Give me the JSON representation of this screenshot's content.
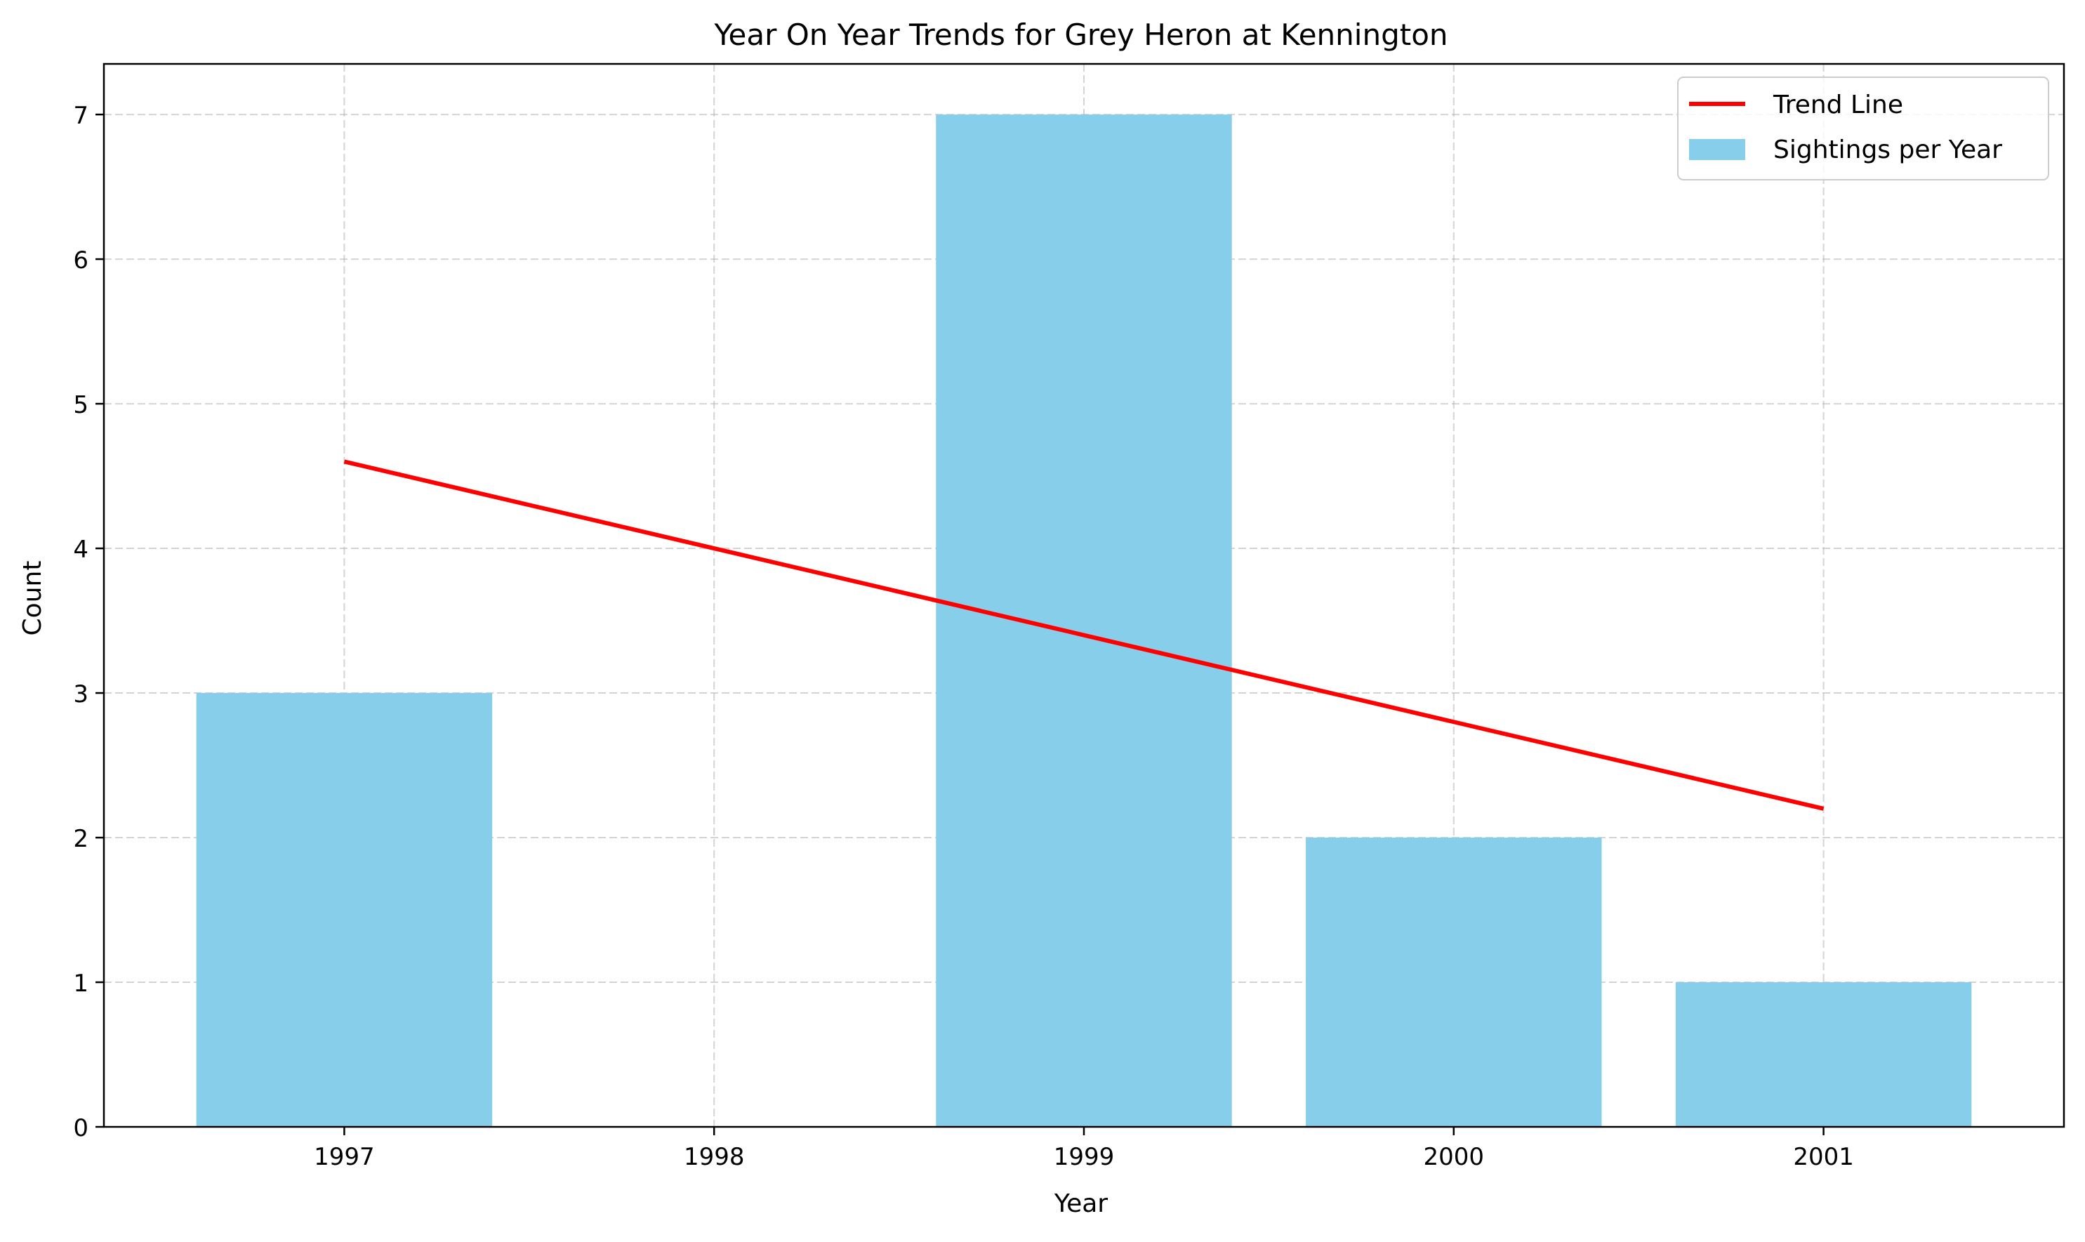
{
  "chart_data": {
    "type": "bar",
    "title": "Year On Year Trends for Grey Heron at Kennington",
    "xlabel": "Year",
    "ylabel": "Count",
    "categories": [
      "1997",
      "1998",
      "1999",
      "2000",
      "2001"
    ],
    "series": [
      {
        "name": "Sightings per Year",
        "type": "bar",
        "color": "#87ceeb",
        "values": [
          3,
          0,
          7,
          2,
          1
        ]
      },
      {
        "name": "Trend Line",
        "type": "line",
        "color": "#ff0000",
        "values": [
          4.6,
          4.0,
          3.4,
          2.8,
          2.2
        ]
      }
    ],
    "ylim": [
      0,
      7.35
    ],
    "yticks": [
      0,
      1,
      2,
      3,
      4,
      5,
      6,
      7
    ],
    "grid": true,
    "legend_position": "top-right"
  }
}
